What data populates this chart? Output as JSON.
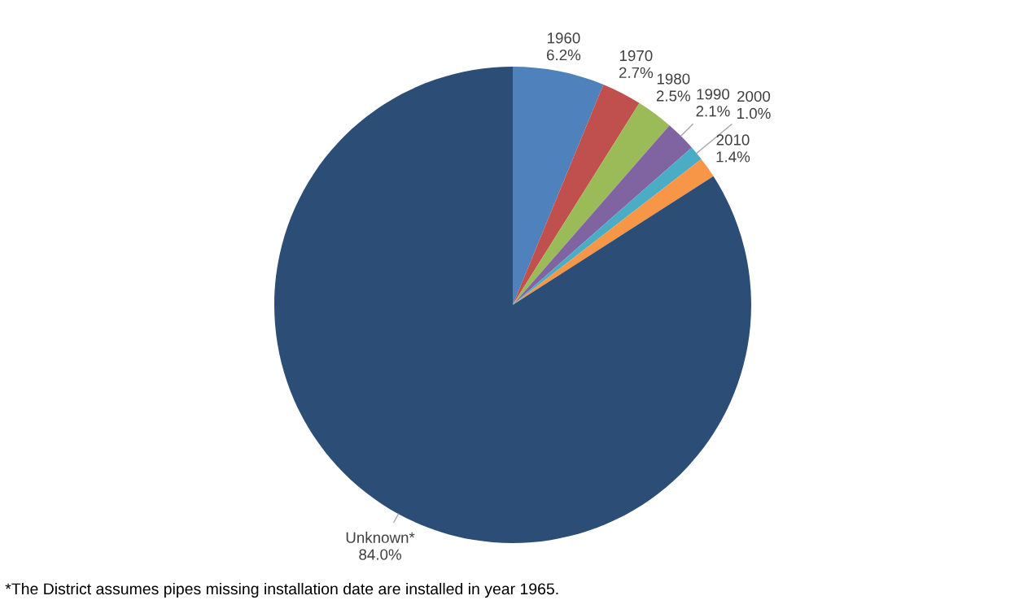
{
  "chart_data": {
    "type": "pie",
    "categories": [
      "1960",
      "1970",
      "1980",
      "1990",
      "2000",
      "2010",
      "Unknown*"
    ],
    "values": [
      6.2,
      2.7,
      2.5,
      2.1,
      1.0,
      1.4,
      84.0
    ],
    "value_labels": [
      "6.2%",
      "2.7%",
      "2.5%",
      "2.1%",
      "1.0%",
      "1.4%",
      "84.0%"
    ],
    "colors": [
      "#4f81bd",
      "#c0504d",
      "#9bbb59",
      "#8064a2",
      "#4bacc6",
      "#f79646",
      "#2c4d75"
    ],
    "annotations": [
      "*The District assumes pipes missing installation date are installed in year 1965."
    ]
  }
}
